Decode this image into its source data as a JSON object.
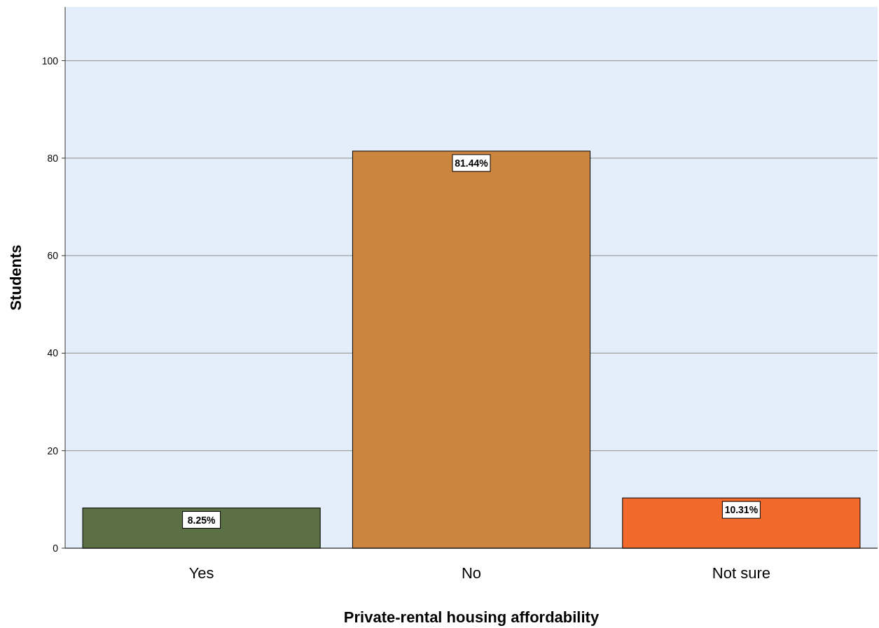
{
  "chart_data": {
    "type": "bar",
    "xlabel": "Private-rental housing affordability",
    "ylabel": "Students",
    "categories": [
      "Yes",
      "No",
      "Not sure"
    ],
    "values": [
      8.25,
      81.44,
      10.31
    ],
    "colors": [
      "#5c7046",
      "#cc853f",
      "#f26a2b"
    ],
    "value_labels": [
      "8.25%",
      "81.44%",
      "10.31%"
    ],
    "ylim": [
      0,
      111
    ],
    "yticks": [
      0,
      20,
      40,
      60,
      80,
      100
    ],
    "grid": "y"
  }
}
